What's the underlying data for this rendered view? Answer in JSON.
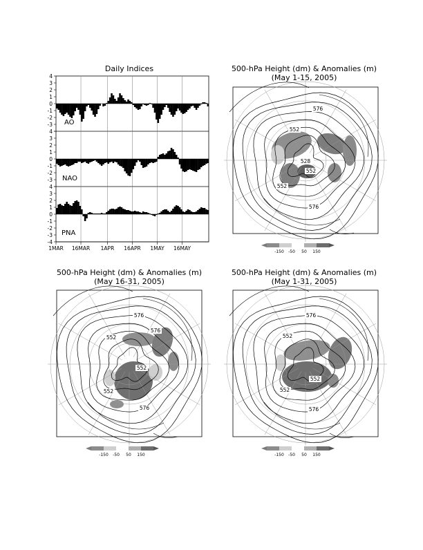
{
  "page": {
    "indices_title": "Daily Indices",
    "map_title": "500-hPa Height (dm) & Anomalies (m)",
    "map1_period": "(May 1-15, 2005)",
    "map2_period": "(May 16-31, 2005)",
    "map3_period": "(May 1-31, 2005)"
  },
  "chart_data": [
    {
      "type": "bar",
      "title": "Daily Indices",
      "x_tick_labels": [
        "1MAR",
        "16MAR",
        "1APR",
        "16APR",
        "1MAY",
        "16MAY"
      ],
      "y_tick_labels": [
        "4",
        "3",
        "2",
        "1",
        "0",
        "-1",
        "-2",
        "-3",
        "-4"
      ],
      "ylim": [
        -4,
        4
      ],
      "grid": true,
      "days": 92,
      "series": [
        {
          "name": "AO",
          "values": [
            -0.7,
            -0.9,
            -1.3,
            -1.6,
            -1.8,
            -1.5,
            -1.3,
            -1.6,
            -1.9,
            -2.1,
            -1.7,
            -1.1,
            -0.6,
            -0.9,
            -1.6,
            -2.6,
            -2.2,
            -1.1,
            -0.4,
            -0.2,
            -0.6,
            -1.0,
            -1.6,
            -1.9,
            -1.5,
            -0.8,
            -0.3,
            0.0,
            -0.4,
            -0.3,
            0.1,
            0.4,
            0.9,
            1.5,
            1.2,
            0.7,
            0.4,
            0.9,
            1.5,
            1.2,
            0.8,
            0.5,
            0.3,
            0.6,
            0.4,
            0.2,
            -0.2,
            -0.5,
            -0.7,
            -0.9,
            -0.8,
            -0.4,
            -0.1,
            -0.2,
            -0.3,
            -0.2,
            0.1,
            -0.1,
            -0.6,
            -1.3,
            -2.3,
            -2.8,
            -2.2,
            -1.6,
            -0.9,
            -0.5,
            -0.2,
            -0.6,
            -1.2,
            -1.6,
            -1.9,
            -1.6,
            -1.1,
            -0.7,
            -1.0,
            -1.3,
            -1.5,
            -1.4,
            -1.2,
            -0.9,
            -0.7,
            -0.4,
            -0.3,
            -0.6,
            -0.9,
            -0.6,
            -0.3,
            -0.1,
            0.2,
            0.2,
            0.1,
            -0.4
          ]
        },
        {
          "name": "NAO",
          "values": [
            -0.7,
            -0.9,
            -1.1,
            -1.0,
            -0.9,
            -0.8,
            -1.0,
            -1.1,
            -1.0,
            -0.9,
            -0.8,
            -0.6,
            -0.6,
            -0.4,
            -0.4,
            -0.6,
            -0.5,
            -0.4,
            -0.6,
            -0.7,
            -0.5,
            -0.4,
            -0.3,
            -0.2,
            -0.4,
            -0.6,
            -0.8,
            -1.0,
            -0.8,
            -0.6,
            -0.5,
            -0.7,
            -0.5,
            -0.4,
            -0.6,
            -0.4,
            -0.5,
            -0.8,
            -1.0,
            -1.1,
            -1.3,
            -1.8,
            -2.1,
            -2.4,
            -2.5,
            -2.0,
            -1.5,
            -1.0,
            -0.5,
            -0.2,
            -0.4,
            -0.9,
            -1.3,
            -1.2,
            -1.1,
            -0.8,
            -0.6,
            -0.5,
            -0.6,
            -0.5,
            -0.4,
            0.3,
            0.6,
            0.7,
            0.8,
            0.6,
            0.8,
            1.1,
            1.2,
            1.6,
            1.4,
            1.0,
            0.6,
            0.2,
            -0.8,
            -1.4,
            -1.8,
            -1.9,
            -1.8,
            -1.6,
            -1.5,
            -1.6,
            -1.7,
            -1.8,
            -1.9,
            -1.6,
            -1.5,
            -1.2,
            -1.0,
            -0.9,
            -0.7,
            -0.6
          ]
        },
        {
          "name": "PNA",
          "values": [
            0.9,
            1.4,
            1.5,
            1.3,
            1.2,
            1.5,
            1.8,
            1.5,
            1.3,
            1.2,
            1.6,
            1.9,
            2.0,
            1.8,
            1.2,
            0.7,
            -0.3,
            -1.0,
            -0.6,
            0.2,
            0.3,
            0.2,
            0.1,
            0.1,
            0.1,
            0.1,
            0.1,
            0.2,
            0.1,
            0.1,
            0.3,
            0.5,
            0.7,
            0.8,
            0.8,
            0.7,
            0.8,
            1.0,
            1.1,
            1.0,
            0.8,
            0.7,
            0.6,
            0.6,
            0.5,
            0.4,
            0.4,
            0.5,
            0.4,
            0.4,
            0.3,
            0.2,
            0.4,
            0.3,
            0.3,
            0.2,
            0.1,
            -0.1,
            -0.2,
            -0.3,
            -0.1,
            0.1,
            0.2,
            0.4,
            0.6,
            0.7,
            0.7,
            0.5,
            0.3,
            0.5,
            0.8,
            1.1,
            1.3,
            1.2,
            1.0,
            0.7,
            0.4,
            0.3,
            0.5,
            0.7,
            0.6,
            0.4,
            0.3,
            0.3,
            0.4,
            0.6,
            0.8,
            1.0,
            0.9,
            0.9,
            0.7,
            0.6
          ]
        }
      ]
    },
    {
      "type": "heatmap",
      "title": "500-hPa Height (dm) & Anomalies (m)",
      "subtitle": "(May 1-15, 2005)",
      "contour_labels": [
        "576",
        "552",
        "528",
        "552",
        "552",
        "576"
      ],
      "colorbar_ticks": [
        "-150",
        "-50",
        "50",
        "150"
      ]
    },
    {
      "type": "heatmap",
      "title": "500-hPa Height (dm) & Anomalies (m)",
      "subtitle": "(May 16-31, 2005)",
      "contour_labels": [
        "576",
        "552",
        "576",
        "552",
        "552",
        "576"
      ],
      "colorbar_ticks": [
        "-150",
        "-50",
        "50",
        "150"
      ]
    },
    {
      "type": "heatmap",
      "title": "500-hPa Height (dm) & Anomalies (m)",
      "subtitle": "(May 1-31, 2005)",
      "contour_labels": [
        "576",
        "552",
        "552",
        "552",
        "576"
      ],
      "colorbar_ticks": [
        "-150",
        "-50",
        "50",
        "150"
      ]
    }
  ]
}
